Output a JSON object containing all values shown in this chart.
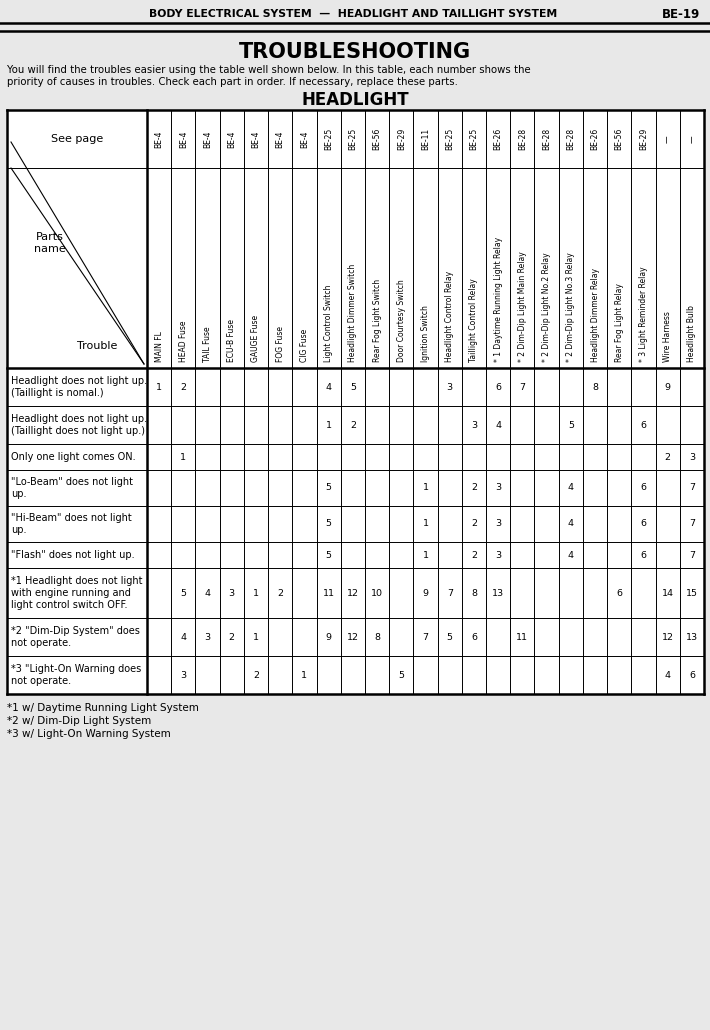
{
  "header_title": "BODY ELECTRICAL SYSTEM  —  HEADLIGHT AND TAILLIGHT SYSTEM",
  "header_page": "BE-19",
  "main_title": "TROUBLESHOOTING",
  "intro_line1": "You will find the troubles easier using the table well shown below. In this table, each number shows the",
  "intro_line2": "priority of causes in troubles. Check each part in order. If necessary, replace these parts.",
  "section_title": "HEADLIGHT",
  "see_page_labels": [
    "BE-4",
    "BE-4",
    "BE-4",
    "BE-4",
    "BE-4",
    "BE-4",
    "BE-4",
    "BE-25",
    "BE-25",
    "BE-56",
    "BE-29",
    "BE-11",
    "BE-25",
    "BE-25",
    "BE-26",
    "BE-28",
    "BE-28",
    "BE-28",
    "BE-26",
    "BE-56",
    "BE-29",
    "—",
    "—"
  ],
  "col_headers": [
    "MAIN FL",
    "HEAD Fuse",
    "TAIL Fuse",
    "ECU-B Fuse",
    "GAUGE Fuse",
    "FOG Fuse",
    "CIG Fuse",
    "Light Control Switch",
    "Headlight Dimmer Switch",
    "Rear Fog Light Switch",
    "Door Courtesy Switch",
    "Ignition Switch",
    "Headlight Control Relay",
    "Taillight Control Relay",
    "* 1 Daytime Running Light Relay",
    "* 2 Dim-Dip Light Main Relay",
    "* 2 Dim-Dip Light No.2 Relay",
    "* 2 Dim-Dip Light No.3 Relay",
    "Headlight Dimmer Relay",
    "Rear Fog Light Relay",
    "* 3 Light Reminder Relay",
    "Wire Harness",
    "Headlight Bulb"
  ],
  "row_labels": [
    "Headlight does not light up.\n(Taillight is nomal.)",
    "Headlight does not light up.\n(Taillight does not light up.)",
    "Only one light comes ON.",
    "\"Lo-Beam\" does not light\nup.",
    "\"Hi-Beam\" does not light\nup.",
    "\"Flash\" does not light up.",
    "*1 Headlight does not light\nwith engine running and\nlight control switch OFF.",
    "*2 \"Dim-Dip System\" does\nnot operate.",
    "*3 \"Light-On Warning does\nnot operate."
  ],
  "table_data": [
    [
      1,
      2,
      0,
      0,
      0,
      0,
      0,
      4,
      5,
      0,
      0,
      0,
      3,
      0,
      6,
      7,
      0,
      0,
      8,
      0,
      0,
      9,
      0
    ],
    [
      0,
      0,
      0,
      0,
      0,
      0,
      0,
      1,
      2,
      0,
      0,
      0,
      0,
      3,
      4,
      0,
      0,
      5,
      0,
      0,
      6,
      0,
      0
    ],
    [
      0,
      1,
      0,
      0,
      0,
      0,
      0,
      0,
      0,
      0,
      0,
      0,
      0,
      0,
      0,
      0,
      0,
      0,
      0,
      0,
      0,
      2,
      3
    ],
    [
      0,
      0,
      0,
      0,
      0,
      0,
      0,
      5,
      0,
      0,
      0,
      1,
      0,
      2,
      3,
      0,
      0,
      4,
      0,
      0,
      6,
      0,
      7
    ],
    [
      0,
      0,
      0,
      0,
      0,
      0,
      0,
      5,
      0,
      0,
      0,
      1,
      0,
      2,
      3,
      0,
      0,
      4,
      0,
      0,
      6,
      0,
      7
    ],
    [
      0,
      0,
      0,
      0,
      0,
      0,
      0,
      5,
      0,
      0,
      0,
      1,
      0,
      2,
      3,
      0,
      0,
      4,
      0,
      0,
      6,
      0,
      7
    ],
    [
      0,
      5,
      4,
      3,
      1,
      2,
      0,
      11,
      12,
      10,
      0,
      9,
      7,
      8,
      13,
      0,
      0,
      0,
      0,
      6,
      0,
      14,
      15
    ],
    [
      0,
      4,
      3,
      2,
      1,
      0,
      0,
      9,
      12,
      8,
      0,
      7,
      5,
      6,
      0,
      11,
      0,
      0,
      0,
      0,
      0,
      12,
      13
    ],
    [
      0,
      3,
      0,
      0,
      2,
      0,
      1,
      0,
      0,
      0,
      5,
      0,
      0,
      0,
      0,
      0,
      0,
      0,
      0,
      0,
      0,
      4,
      6
    ]
  ],
  "footnotes": [
    "*1 w/ Daytime Running Light System",
    "*2 w/ Dim-Dip Light System",
    "*3 w/ Light-On Warning System"
  ],
  "bg_color": "#e8e8e8",
  "table_bg": "#f0f0f0"
}
